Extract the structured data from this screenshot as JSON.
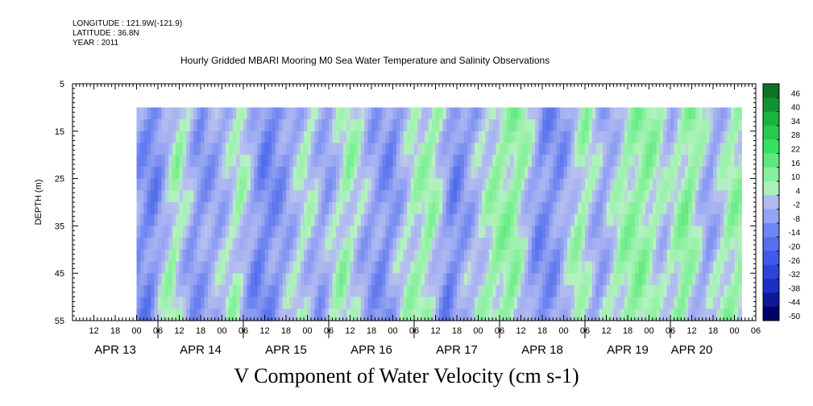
{
  "meta": {
    "longitude": "LONGITUDE : 121.9W(-121.9)",
    "latitude": "LATITUDE : 36.8N",
    "year": "YEAR : 2011"
  },
  "title": "Hourly Gridded MBARI Mooring M0 Sea Water Temperature and Salinity Observations",
  "variable_label": "V Component of Water Velocity (cm s-1)",
  "chart_data": {
    "type": "heatmap",
    "title": "Hourly Gridded MBARI Mooring M0 Sea Water Temperature and Salinity Observations",
    "subtitle": "V Component of Water Velocity (cm s-1)",
    "ylabel": "DEPTH (m)",
    "yaxis": {
      "range": [
        5,
        55
      ],
      "inverted": true,
      "ticks": [
        5,
        15,
        25,
        35,
        45,
        55
      ]
    },
    "xaxis": {
      "range_hours": [
        0,
        192
      ],
      "hour_tick_labels": [
        "12",
        "18",
        "00",
        "06",
        "12",
        "18",
        "00",
        "06",
        "12",
        "18",
        "00",
        "06",
        "12",
        "18",
        "00",
        "06",
        "12",
        "18",
        "00",
        "06",
        "12",
        "18",
        "00",
        "06",
        "12",
        "18",
        "00",
        "06",
        "12",
        "18",
        "00",
        "06"
      ],
      "day_labels": [
        "APR 13",
        "APR 14",
        "APR 15",
        "APR 16",
        "APR 17",
        "APR 18",
        "APR 19",
        "APR 20"
      ],
      "day_label_hours": [
        12,
        36,
        60,
        84,
        108,
        132,
        156,
        174
      ]
    },
    "data_extent": {
      "start_hour": 18,
      "end_hour": 188,
      "top_depth": 10,
      "bottom_depth": 55
    },
    "colorbar": {
      "labels": [
        "46",
        "40",
        "34",
        "28",
        "22",
        "16",
        "10",
        "4",
        "-2",
        "-8",
        "-14",
        "-20",
        "-26",
        "-32",
        "-38",
        "-44",
        "-50"
      ],
      "range": [
        -50,
        50
      ]
    },
    "column_profile": {
      "description": "approximate dominant velocity by time column (cm s-1), near-surface to bottom",
      "times": [
        18,
        24,
        30,
        36,
        42,
        48,
        54,
        60,
        66,
        72,
        78,
        84,
        90,
        96,
        102,
        108,
        114,
        120,
        126,
        132,
        138,
        144,
        150,
        156,
        162,
        168,
        174,
        180,
        186
      ],
      "values": [
        -8,
        -14,
        6,
        -10,
        -6,
        4,
        -14,
        -10,
        2,
        -8,
        6,
        -6,
        -12,
        2,
        6,
        -14,
        -4,
        6,
        8,
        -12,
        -10,
        6,
        -8,
        6,
        8,
        -2,
        10,
        -8,
        6
      ]
    }
  }
}
